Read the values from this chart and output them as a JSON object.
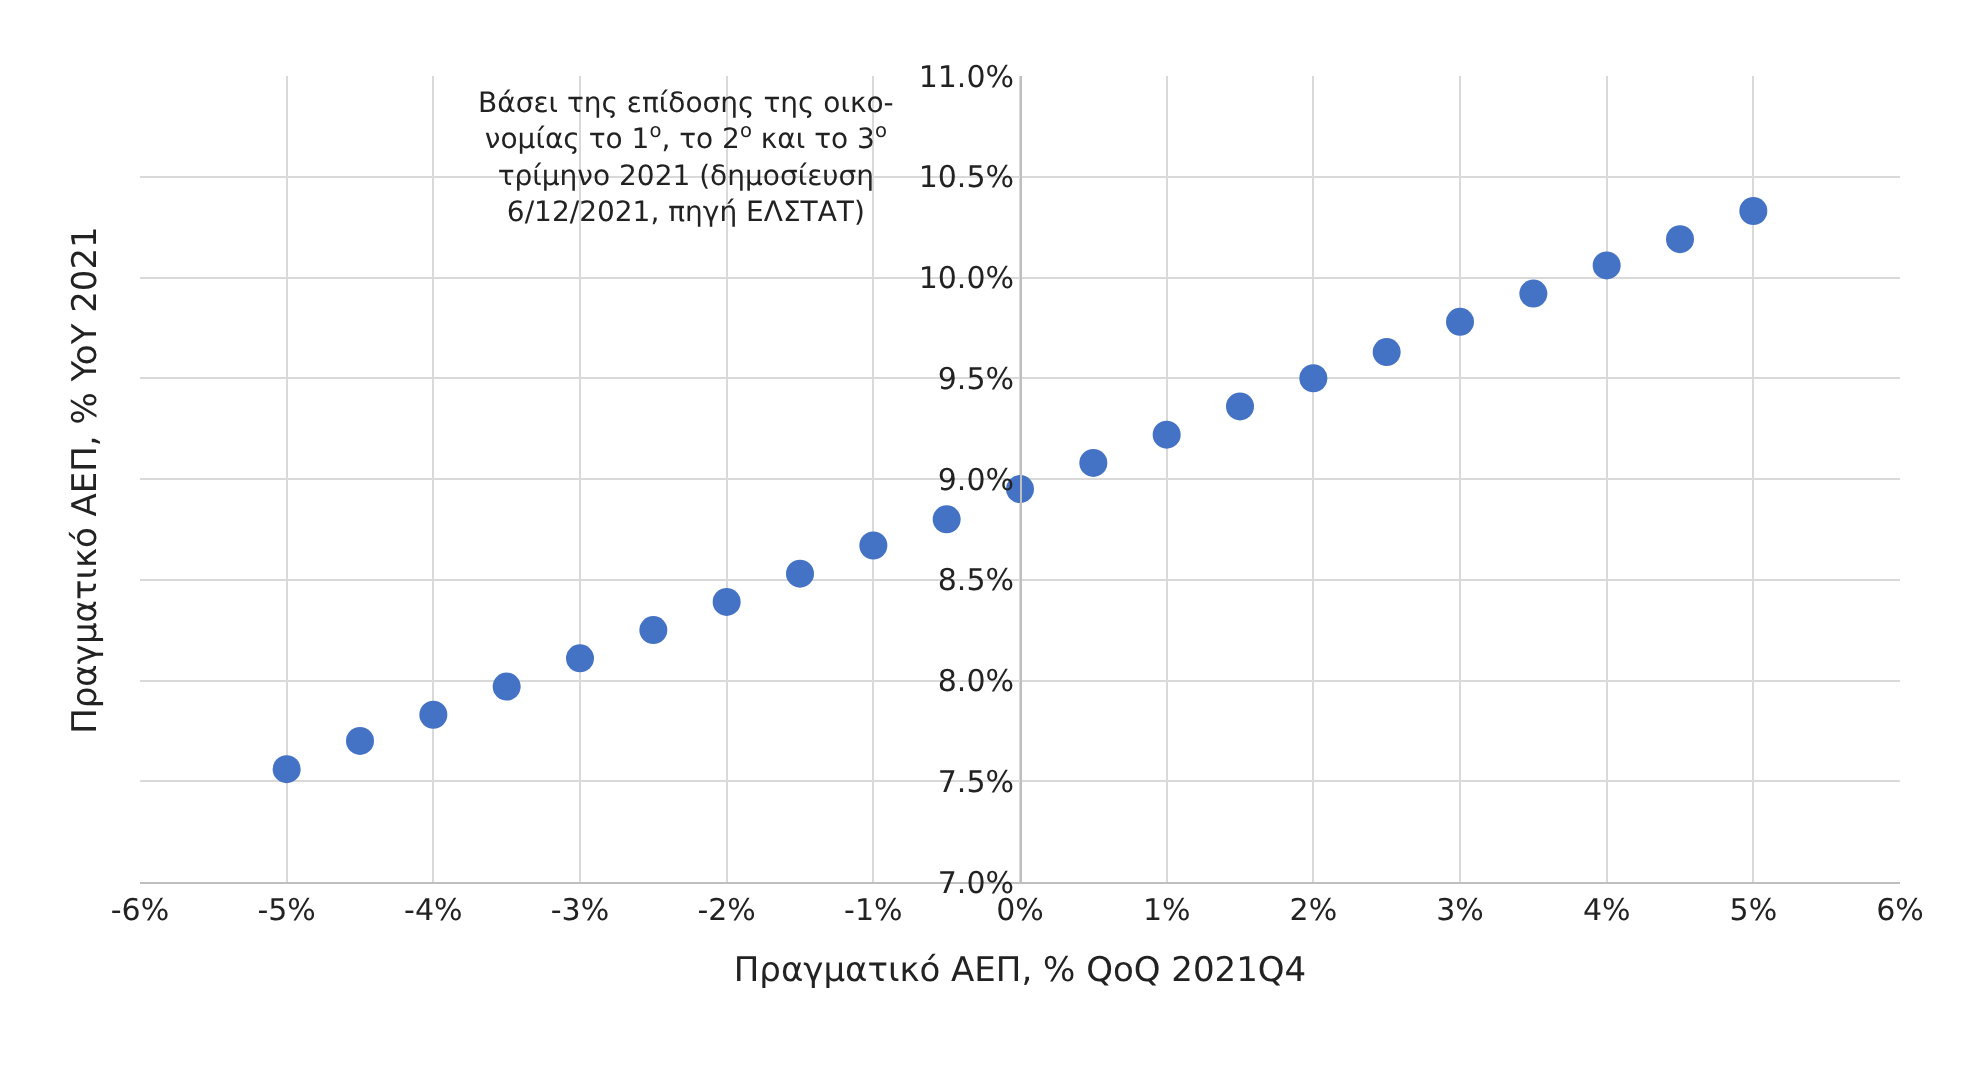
{
  "chart_data": {
    "type": "scatter",
    "xlabel": "Πραγματικό ΑΕΠ, % QoQ 2021Q4",
    "ylabel": "Πραγματικό ΑΕΠ, % YoY 2021",
    "annotations": [
      "Βάσει της επίδοσης της οικο-\nνομίας το 1$^{ο}$, το 2$^{ο}$ και το 3$^{ο}$\nτρίμηνο 2021 (δημοσίευση\n6/12/2021, πηγή ΕΛΣΤΑΤ)"
    ],
    "x": [
      -5,
      -4.5,
      -4,
      -3.5,
      -3,
      -2.5,
      -2,
      -1.5,
      -1,
      -0.5,
      0,
      0.5,
      1,
      1.5,
      2,
      2.5,
      3,
      3.5,
      4,
      4.5,
      5
    ],
    "series": [
      {
        "color": "#4472c4",
        "values": [
          7.56,
          7.7,
          7.83,
          7.97,
          8.11,
          8.25,
          8.39,
          8.53,
          8.67,
          8.8,
          8.95,
          9.08,
          9.22,
          9.36,
          9.5,
          9.63,
          9.78,
          9.92,
          10.06,
          10.19,
          10.33
        ]
      }
    ],
    "xlim": [
      -6,
      6
    ],
    "xticks": [
      {
        "value": -6,
        "label": "-6%"
      },
      {
        "value": -5,
        "label": "-5%"
      },
      {
        "value": -4,
        "label": "-4%"
      },
      {
        "value": -3,
        "label": "-3%"
      },
      {
        "value": -2,
        "label": "-2%"
      },
      {
        "value": -1,
        "label": "-1%"
      },
      {
        "value": 0,
        "label": "0%"
      },
      {
        "value": 1,
        "label": "1%"
      },
      {
        "value": 2,
        "label": "2%"
      },
      {
        "value": 3,
        "label": "3%"
      },
      {
        "value": 4,
        "label": "4%"
      },
      {
        "value": 5,
        "label": "5%"
      },
      {
        "value": 6,
        "label": "6%"
      }
    ],
    "ylim": [
      7.0,
      11.0
    ],
    "yticks": [
      {
        "value": 7.0,
        "label": "7.0%"
      },
      {
        "value": 7.5,
        "label": "7.5%"
      },
      {
        "value": 8.0,
        "label": "8.0%"
      },
      {
        "value": 8.5,
        "label": "8.5%"
      },
      {
        "value": 9.0,
        "label": "9.0%"
      },
      {
        "value": 9.5,
        "label": "9.5%"
      },
      {
        "value": 10.0,
        "label": "10.0%"
      },
      {
        "value": 10.5,
        "label": "10.5%"
      },
      {
        "value": 11.0,
        "label": "11.0%"
      }
    ],
    "grid": true,
    "marker": "circle"
  }
}
